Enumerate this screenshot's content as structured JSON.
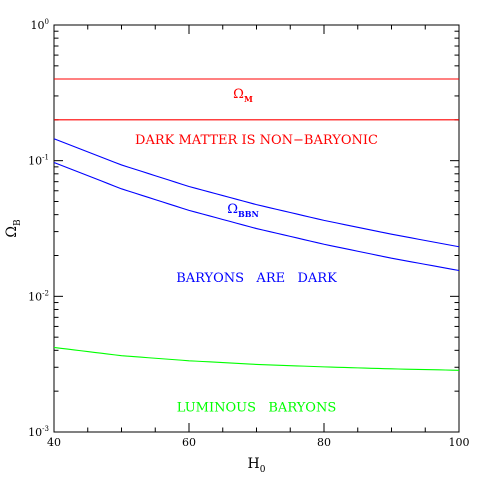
{
  "chart_data": {
    "type": "line",
    "xlabel": {
      "main": "H",
      "sub": "0"
    },
    "ylabel": {
      "main": "Ω",
      "sub": "B"
    },
    "xlim": [
      40,
      100
    ],
    "ylim": [
      0.001,
      1
    ],
    "yscale": "log",
    "x_ticks": [
      {
        "value": 40,
        "label": "40"
      },
      {
        "value": 60,
        "label": "60"
      },
      {
        "value": 80,
        "label": "80"
      },
      {
        "value": 100,
        "label": "100"
      }
    ],
    "y_ticks": [
      {
        "value": 1,
        "base": "10",
        "exp": "0"
      },
      {
        "value": 0.1,
        "base": "10",
        "exp": "-1"
      },
      {
        "value": 0.01,
        "base": "10",
        "exp": "-2"
      },
      {
        "value": 0.001,
        "base": "10",
        "exp": "-3"
      }
    ],
    "grid": false,
    "series": [
      {
        "key": "omega-m-upper",
        "color": "#ff0000",
        "x": [
          40,
          100
        ],
        "y": [
          0.4,
          0.4
        ]
      },
      {
        "key": "omega-m-lower",
        "color": "#ff0000",
        "x": [
          40,
          100
        ],
        "y": [
          0.2,
          0.2
        ]
      },
      {
        "key": "bbn-upper",
        "color": "#0000ff",
        "x": [
          40,
          50,
          60,
          70,
          80,
          90,
          100
        ],
        "y": [
          0.145,
          0.093,
          0.0645,
          0.0474,
          0.0363,
          0.0287,
          0.0232
        ]
      },
      {
        "key": "bbn-lower",
        "color": "#0000ff",
        "x": [
          40,
          50,
          60,
          70,
          80,
          90,
          100
        ],
        "y": [
          0.097,
          0.062,
          0.043,
          0.0316,
          0.0242,
          0.0191,
          0.0155
        ]
      },
      {
        "key": "luminous",
        "color": "#00ff00",
        "x": [
          40,
          50,
          60,
          70,
          80,
          90,
          100
        ],
        "y": [
          0.0042,
          0.00365,
          0.00335,
          0.00315,
          0.00302,
          0.00292,
          0.00285
        ]
      }
    ],
    "annotations": [
      {
        "key": "omega-m",
        "main": "Ω",
        "sub": "M",
        "color": "#ff0000",
        "x": 68,
        "y": 0.29
      },
      {
        "key": "dark-matter",
        "text": "DARK MATTER IS NON−BARYONIC",
        "color": "#ff0000",
        "x": 70,
        "y": 0.133
      },
      {
        "key": "omega-bbn",
        "main": "Ω",
        "sub": "BBN",
        "color": "#0000ff",
        "x": 68,
        "y": 0.041
      },
      {
        "key": "baryons-dark",
        "text": "BARYONS   ARE   DARK",
        "color": "#0000ff",
        "x": 70,
        "y": 0.0128
      },
      {
        "key": "luminous-baryons",
        "text": "LUMINOUS   BARYONS",
        "color": "#00ff00",
        "x": 70,
        "y": 0.00142
      }
    ]
  }
}
